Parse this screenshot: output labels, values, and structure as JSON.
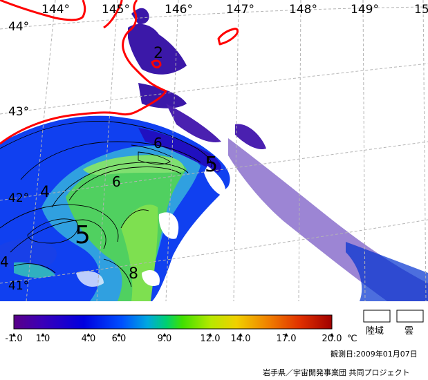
{
  "map": {
    "longitude_labels": [
      "144°",
      "145°",
      "146°",
      "147°",
      "148°",
      "149°",
      "15"
    ],
    "latitude_labels": [
      "44°",
      "43°",
      "42°",
      "41°"
    ],
    "contour_labels": [
      "2",
      "6",
      "5",
      "4",
      "6",
      "5",
      "8",
      "4"
    ]
  },
  "legend": {
    "tick_labels": [
      "-1.0",
      "1.0",
      "4.0",
      "6.0",
      "9.0",
      "12.0",
      "14.0",
      "17.0",
      "20.0"
    ],
    "unit": "℃",
    "colors": [
      "#5a0088",
      "#3a00b8",
      "#0000e0",
      "#0050ff",
      "#00a8e0",
      "#00d070",
      "#40e000",
      "#b8e800",
      "#f0d000",
      "#f08000",
      "#e03000",
      "#a00000"
    ],
    "land_label": "陸域",
    "cloud_label": "雲"
  },
  "observation_date": "観測日:2009年01月07日",
  "credit": "岩手県／宇宙開発事業団 共同プロジェクト",
  "colors": {
    "coastline": "#ff0000",
    "grid": "#b4b4b4",
    "cold_water": "#1040f0",
    "warm_water": "#50d060",
    "offshore_speckle": "#4a20b0"
  }
}
